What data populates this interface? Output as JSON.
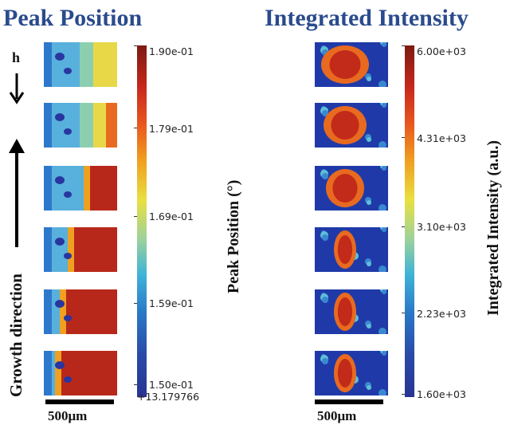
{
  "titles": {
    "left": "Peak Position",
    "right": "Integrated Intensity"
  },
  "left_panel": {
    "colorbar_ticks": [
      "1.90e-01",
      "1.79e-01",
      "1.69e-01",
      "1.59e-01",
      "1.50e-01"
    ],
    "colorbar_offset": "+13.179766",
    "colorbar_label": "Peak Position (°)",
    "scale_label": "500μm",
    "h_label": "h",
    "growth_label": "Growth direction"
  },
  "right_panel": {
    "colorbar_ticks": [
      "6.00e+03",
      "4.31e+03",
      "3.10e+03",
      "2.23e+03",
      "1.60e+03"
    ],
    "colorbar_label": "Integrated Intensity (a.u.)",
    "scale_label": "500μm"
  },
  "colors": {
    "title": "#2a4b8d",
    "jet_low": "#1f2fa8",
    "jet_high": "#8c1a12"
  }
}
